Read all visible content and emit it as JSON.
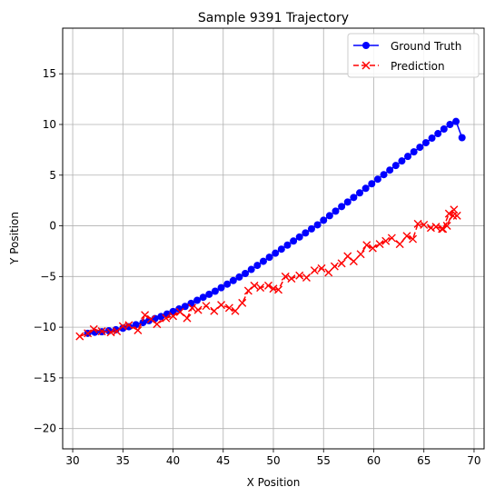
{
  "chart_data": {
    "type": "line",
    "title": "Sample 9391 Trajectory",
    "xlabel": "X Position",
    "ylabel": "Y Position",
    "xlim": [
      29.0,
      71.0
    ],
    "ylim": [
      -22.0,
      19.5
    ],
    "xticks": [
      30,
      35,
      40,
      45,
      50,
      55,
      60,
      65,
      70
    ],
    "yticks": [
      -20,
      -15,
      -10,
      -5,
      0,
      5,
      10,
      15
    ],
    "grid": true,
    "legend": "top-right",
    "series": [
      {
        "name": "Ground Truth",
        "color": "#0000ff",
        "marker": "circle",
        "linestyle": "solid",
        "x": [
          31.5,
          32.2,
          32.9,
          33.6,
          34.3,
          35.0,
          35.6,
          36.3,
          37.0,
          37.6,
          38.2,
          38.8,
          39.4,
          40.0,
          40.6,
          41.2,
          41.8,
          42.4,
          43.0,
          43.6,
          44.2,
          44.8,
          45.4,
          46.0,
          46.6,
          47.2,
          47.8,
          48.4,
          49.0,
          49.6,
          50.2,
          50.8,
          51.4,
          52.0,
          52.6,
          53.2,
          53.8,
          54.4,
          55.0,
          55.6,
          56.2,
          56.8,
          57.4,
          58.0,
          58.6,
          59.2,
          59.8,
          60.4,
          61.0,
          61.6,
          62.2,
          62.8,
          63.4,
          64.0,
          64.6,
          65.2,
          65.8,
          66.4,
          67.0,
          67.6,
          68.2,
          68.8
        ],
        "y": [
          -10.6,
          -10.5,
          -10.45,
          -10.35,
          -10.25,
          -10.1,
          -9.95,
          -9.75,
          -9.55,
          -9.35,
          -9.15,
          -8.95,
          -8.7,
          -8.45,
          -8.2,
          -7.95,
          -7.65,
          -7.35,
          -7.05,
          -6.75,
          -6.45,
          -6.1,
          -5.75,
          -5.4,
          -5.05,
          -4.7,
          -4.3,
          -3.9,
          -3.5,
          -3.1,
          -2.7,
          -2.3,
          -1.9,
          -1.5,
          -1.1,
          -0.7,
          -0.3,
          0.1,
          0.55,
          1.0,
          1.45,
          1.9,
          2.35,
          2.8,
          3.25,
          3.7,
          4.15,
          4.6,
          5.05,
          5.5,
          5.95,
          6.4,
          6.85,
          7.3,
          7.75,
          8.2,
          8.65,
          9.1,
          9.55,
          10.0,
          10.3,
          8.7
        ]
      },
      {
        "name": "Prediction",
        "color": "#ff0000",
        "marker": "x",
        "linestyle": "dashed",
        "x": [
          30.7,
          31.5,
          32.1,
          32.9,
          33.8,
          34.4,
          35.0,
          35.6,
          36.5,
          37.2,
          37.8,
          38.4,
          39.3,
          40.0,
          40.7,
          41.4,
          41.9,
          42.5,
          43.3,
          44.1,
          44.8,
          45.6,
          46.2,
          46.9,
          47.5,
          48.1,
          48.7,
          49.5,
          50.0,
          50.5,
          51.2,
          51.8,
          52.6,
          53.3,
          54.1,
          54.8,
          55.5,
          56.1,
          56.8,
          57.4,
          58.0,
          58.7,
          59.3,
          59.9,
          60.6,
          61.2,
          61.8,
          62.6,
          63.3,
          63.9,
          64.4,
          65.0,
          65.7,
          66.2,
          66.9,
          67.5,
          68.0,
          67.3,
          66.8,
          67.9,
          68.3
        ],
        "y": [
          -10.9,
          -10.6,
          -10.2,
          -10.4,
          -10.5,
          -10.4,
          -9.9,
          -9.8,
          -10.3,
          -8.8,
          -9.2,
          -9.7,
          -9.1,
          -8.9,
          -8.5,
          -9.1,
          -8.1,
          -8.3,
          -7.9,
          -8.4,
          -7.8,
          -8.1,
          -8.4,
          -7.6,
          -6.4,
          -5.9,
          -6.1,
          -5.9,
          -6.2,
          -6.3,
          -5.0,
          -5.2,
          -4.9,
          -5.1,
          -4.4,
          -4.2,
          -4.6,
          -4.0,
          -3.7,
          -3.0,
          -3.5,
          -2.8,
          -1.9,
          -2.2,
          -1.8,
          -1.5,
          -1.2,
          -1.8,
          -1.0,
          -1.3,
          0.2,
          0.1,
          -0.2,
          -0.1,
          -0.3,
          1.2,
          1.6,
          0.0,
          -0.3,
          1.0,
          1.0
        ]
      }
    ]
  }
}
